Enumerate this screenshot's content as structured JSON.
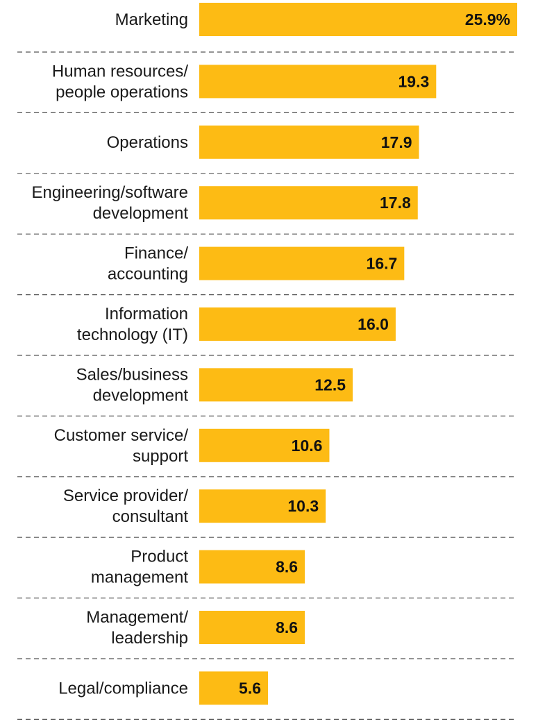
{
  "chart_data": {
    "type": "bar",
    "orientation": "horizontal",
    "categories": [
      [
        "Marketing"
      ],
      [
        "Human resources/",
        "people operations"
      ],
      [
        "Operations"
      ],
      [
        "Engineering/software",
        "development"
      ],
      [
        "Finance/",
        "accounting"
      ],
      [
        "Information",
        "technology (IT)"
      ],
      [
        "Sales/business",
        "development"
      ],
      [
        "Customer service/",
        "support"
      ],
      [
        "Service provider/",
        "consultant"
      ],
      [
        "Product",
        "management"
      ],
      [
        "Management/",
        "leadership"
      ],
      [
        "Legal/compliance"
      ]
    ],
    "values": [
      25.9,
      19.3,
      17.9,
      17.8,
      16.7,
      16.0,
      12.5,
      10.6,
      10.3,
      8.6,
      8.6,
      5.6
    ],
    "value_labels": [
      "25.9%",
      "19.3",
      "17.9",
      "17.8",
      "16.7",
      "16.0",
      "12.5",
      "10.6",
      "10.3",
      "8.6",
      "8.6",
      "5.6"
    ],
    "xlim": [
      0,
      25.9
    ],
    "title": "",
    "xlabel": "",
    "ylabel": "",
    "grid": false,
    "legend": "none",
    "bar_color": "#FDBB14",
    "separator_color": "#555555"
  }
}
